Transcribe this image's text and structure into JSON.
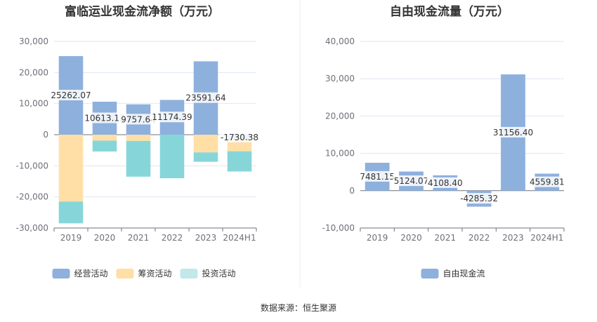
{
  "chart_data": [
    {
      "type": "bar",
      "title": "富临运业现金流净额（万元）",
      "categories": [
        "2019",
        "2020",
        "2021",
        "2022",
        "2023",
        "2024H1"
      ],
      "stacked": true,
      "series": [
        {
          "name": "经营活动",
          "color": "#8eb0dd",
          "values": [
            25262.07,
            10613.13,
            9757.64,
            11174.39,
            23591.64,
            -1730.38
          ]
        },
        {
          "name": "筹资活动",
          "color": "#ffdfa6",
          "values": [
            -21500,
            -1900,
            -2000,
            0,
            -5700,
            -3600
          ]
        },
        {
          "name": "投资活动",
          "color": "#86d6d9",
          "values": [
            -7000,
            -3500,
            -11500,
            -14000,
            -3000,
            -6500
          ]
        }
      ],
      "data_labels": [
        "25262.07",
        "10613.13",
        "9757.64",
        "11174.39",
        "23591.64",
        "-1730.38"
      ],
      "ylim": [
        -30000,
        30000
      ],
      "yticks": [
        "30,000",
        "20,000",
        "10,000",
        "0",
        "-10,000",
        "-20,000",
        "-30,000"
      ],
      "legend_position": "bottom",
      "legend": [
        "经营活动",
        "筹资活动",
        "投资活动"
      ],
      "legend_colors": [
        "#8eb0dd",
        "#ffdfa6",
        "#c2e8ea"
      ],
      "grid": true
    },
    {
      "type": "bar",
      "title": "自由现金流量（万元）",
      "categories": [
        "2019",
        "2020",
        "2021",
        "2022",
        "2023",
        "2024H1"
      ],
      "series": [
        {
          "name": "自由现金流",
          "color": "#8eb0dd",
          "values": [
            7481.15,
            5124.07,
            4108.4,
            -4285.32,
            31156.4,
            4559.81
          ]
        }
      ],
      "data_labels": [
        "7481.15",
        "5124.07",
        "4108.40",
        "-4285.32",
        "31156.40",
        "4559.81"
      ],
      "ylim": [
        -10000,
        40000
      ],
      "yticks": [
        "40,000",
        "30,000",
        "20,000",
        "10,000",
        "0",
        "-10,000"
      ],
      "legend_position": "bottom",
      "legend": [
        "自由现金流"
      ],
      "legend_colors": [
        "#8eb0dd"
      ],
      "grid": true
    }
  ],
  "footer": {
    "source": "数据来源：恒生聚源"
  }
}
